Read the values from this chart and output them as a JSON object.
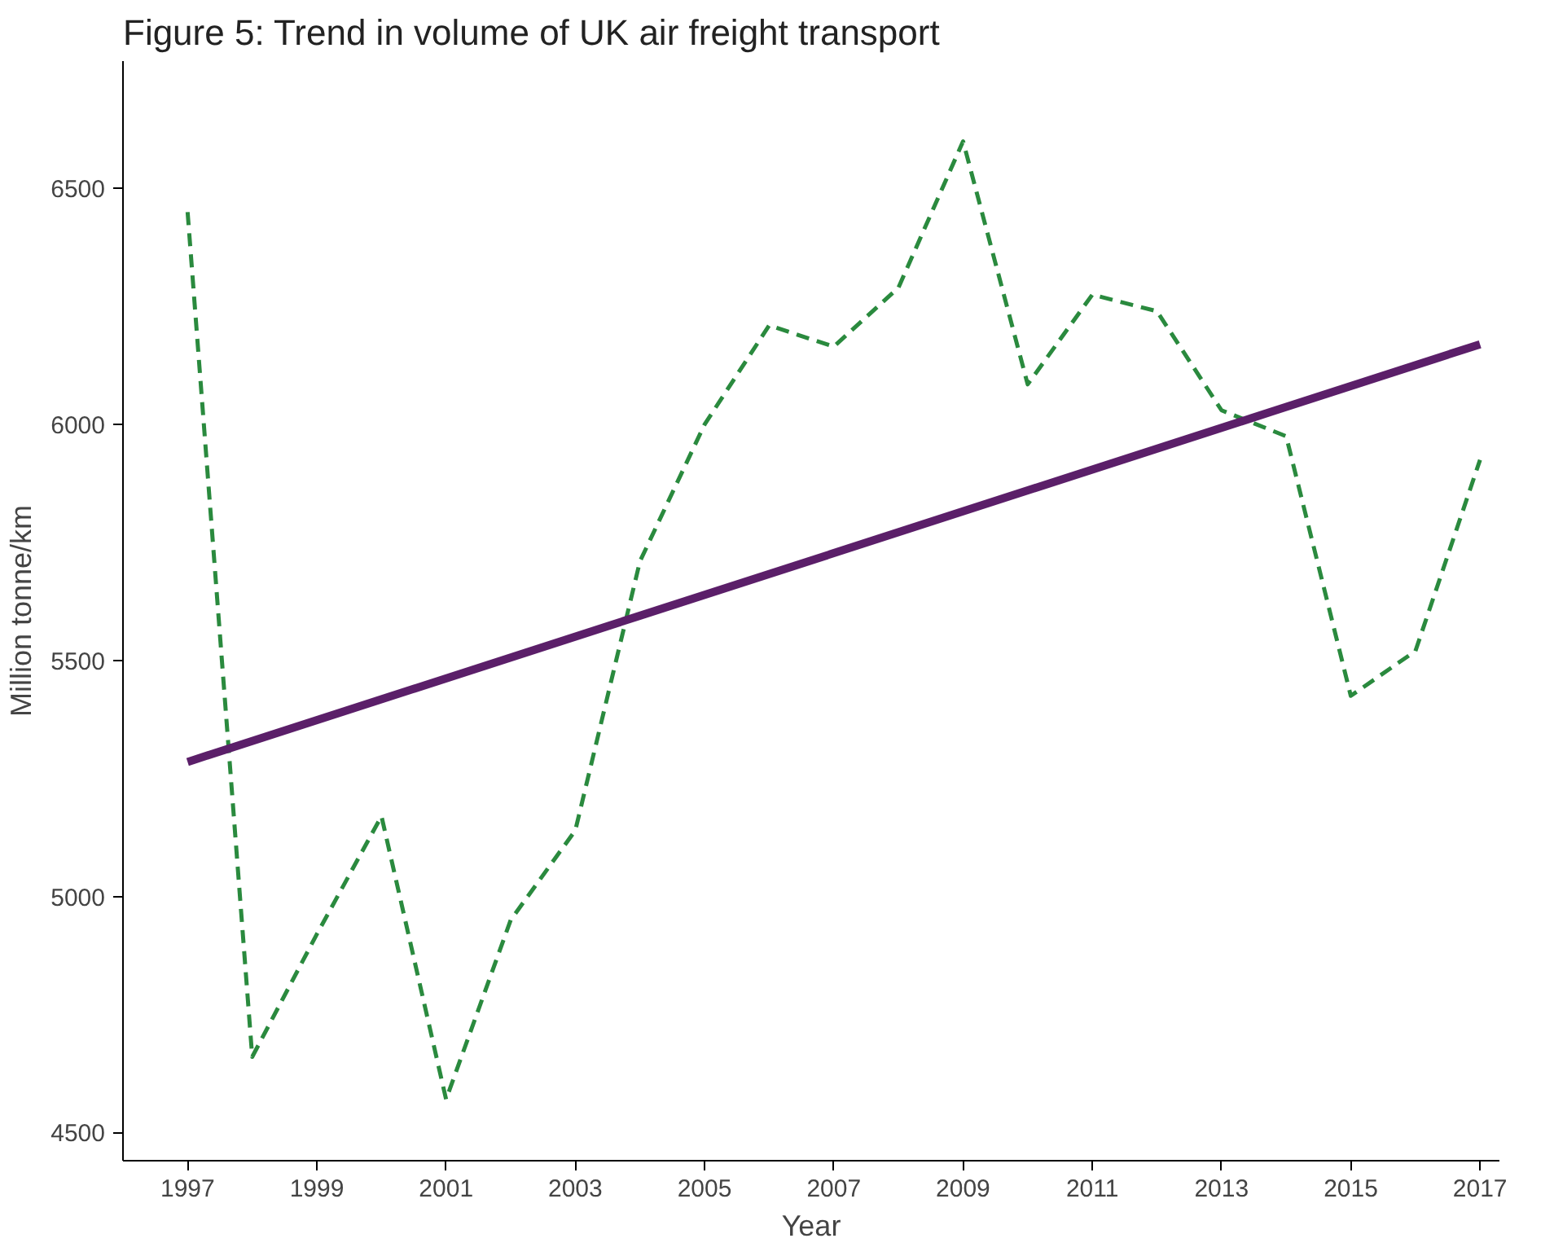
{
  "chart_data": {
    "type": "line",
    "title": "Figure 5: Trend in volume of UK air freight transport",
    "xlabel": "Year",
    "ylabel": "Million tonne/km",
    "x": [
      1997,
      1998,
      1999,
      2000,
      2001,
      2002,
      2003,
      2004,
      2005,
      2006,
      2007,
      2008,
      2009,
      2010,
      2011,
      2012,
      2013,
      2014,
      2015,
      2016,
      2017
    ],
    "series": [
      {
        "color": "#2a8a3e",
        "line_style": "dashed",
        "values": [
          6450,
          4660,
          4920,
          5170,
          4570,
          4950,
          5140,
          5710,
          6000,
          6210,
          6165,
          6290,
          6600,
          6085,
          6275,
          6240,
          6030,
          5975,
          5425,
          5520,
          5925
        ]
      },
      {
        "color": "#5b1f69",
        "line_style": "solid",
        "x": [
          1997,
          2017
        ],
        "values": [
          5285,
          6170
        ]
      }
    ],
    "xlim": [
      1996,
      2017.3
    ],
    "ylim": [
      4440,
      6770
    ],
    "xticks": [
      1997,
      1999,
      2001,
      2003,
      2005,
      2007,
      2009,
      2011,
      2013,
      2015,
      2017
    ],
    "yticks": [
      4500,
      5000,
      5500,
      6000,
      6500
    ],
    "grid": false
  }
}
